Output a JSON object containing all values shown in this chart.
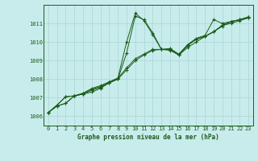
{
  "title": "Graphe pression niveau de la mer (hPa)",
  "bg_color": "#c8ecec",
  "grid_color": "#b0d8d8",
  "line_color": "#1a5c1a",
  "marker_color": "#1a5c1a",
  "xlim": [
    -0.5,
    23.5
  ],
  "ylim": [
    1005.5,
    1012.0
  ],
  "yticks": [
    1006,
    1007,
    1008,
    1009,
    1010,
    1011
  ],
  "xticks": [
    0,
    1,
    2,
    3,
    4,
    5,
    6,
    7,
    8,
    9,
    10,
    11,
    12,
    13,
    14,
    15,
    16,
    17,
    18,
    19,
    20,
    21,
    22,
    23
  ],
  "series": [
    [
      1006.2,
      1006.55,
      1006.7,
      1007.1,
      1007.2,
      1007.3,
      1007.5,
      1007.8,
      1008.0,
      1009.4,
      1011.4,
      1011.2,
      1010.5,
      1009.6,
      1009.55,
      1009.3,
      1009.7,
      1010.0,
      1010.3,
      1010.55,
      1010.9,
      1011.0,
      1011.15,
      1011.3
    ],
    [
      1006.2,
      1006.55,
      1006.7,
      1007.1,
      1007.2,
      1007.4,
      1007.55,
      1007.8,
      1008.0,
      1008.5,
      1009.0,
      1009.3,
      1009.55,
      1009.6,
      1009.6,
      1009.3,
      1009.85,
      1010.15,
      1010.3,
      1010.55,
      1010.85,
      1011.1,
      1011.2,
      1011.3
    ],
    [
      1006.2,
      1006.6,
      1007.05,
      1007.1,
      1007.2,
      1007.45,
      1007.6,
      1007.85,
      1008.05,
      1008.6,
      1009.1,
      1009.35,
      1009.6,
      1009.6,
      1009.65,
      1009.35,
      1009.85,
      1010.2,
      1010.35,
      1011.2,
      1011.0,
      1011.1,
      1011.2,
      1011.35
    ],
    [
      1006.2,
      1006.6,
      1007.05,
      1007.1,
      1007.25,
      1007.5,
      1007.65,
      1007.85,
      1008.05,
      1010.0,
      1011.55,
      1011.15,
      1010.4,
      1009.6,
      1009.6,
      1009.3,
      1009.8,
      1010.15,
      1010.3,
      1010.55,
      1010.9,
      1011.1,
      1011.2,
      1011.35
    ]
  ]
}
